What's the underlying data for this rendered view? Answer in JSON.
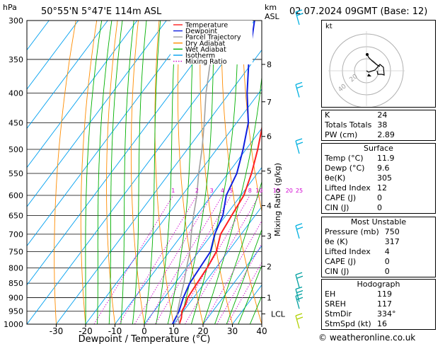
{
  "header": {
    "p_unit": "hPa",
    "location": "50°55'N  5°47'E  114m  ASL",
    "km_unit": "km",
    "asl_unit": "ASL",
    "datetime": "02.07.2024  09GMT  (Base: 12)"
  },
  "legend": [
    {
      "label": "Temperature",
      "color": "#ff2020",
      "style": "solid"
    },
    {
      "label": "Dewpoint",
      "color": "#1020e0",
      "style": "solid"
    },
    {
      "label": "Parcel Trajectory",
      "color": "#a0a0a0",
      "style": "solid"
    },
    {
      "label": "Dry Adiabat",
      "color": "#ff8c00",
      "style": "solid"
    },
    {
      "label": "Wet Adiabat",
      "color": "#00b000",
      "style": "solid"
    },
    {
      "label": "Isotherm",
      "color": "#00a0f0",
      "style": "solid"
    },
    {
      "label": "Mixing Ratio",
      "color": "#d000d0",
      "style": "dotted"
    }
  ],
  "chart_data": {
    "type": "line",
    "xlabel": "Dewpoint / Temperature (°C)",
    "ylabel_right": "Mixing Ratio (g/kg)",
    "xlim": [
      -40,
      40
    ],
    "x_ticks": [
      -30,
      -20,
      -10,
      0,
      10,
      20,
      30,
      40
    ],
    "pressure_levels": [
      300,
      350,
      400,
      450,
      500,
      550,
      600,
      650,
      700,
      750,
      800,
      850,
      900,
      950,
      1000
    ],
    "height_ticks": [
      {
        "label": "8",
        "p": 357
      },
      {
        "label": "7",
        "p": 414
      },
      {
        "label": "6",
        "p": 475
      },
      {
        "label": "5",
        "p": 545
      },
      {
        "label": "4",
        "p": 625
      },
      {
        "label": "3",
        "p": 705
      },
      {
        "label": "2",
        "p": 795
      },
      {
        "label": "1",
        "p": 900
      },
      {
        "label": "LCL",
        "p": 960
      }
    ],
    "mixing_ratio_labels": [
      "1",
      "2",
      "3",
      "4",
      "5",
      "8",
      "10",
      "15",
      "20",
      "25"
    ],
    "series": [
      {
        "name": "Temperature",
        "color": "#ff2020",
        "points": [
          [
            1000,
            11.9
          ],
          [
            975,
            11
          ],
          [
            950,
            9.5
          ],
          [
            925,
            9
          ],
          [
            900,
            8
          ],
          [
            850,
            7.5
          ],
          [
            800,
            7
          ],
          [
            750,
            6
          ],
          [
            700,
            3
          ],
          [
            650,
            2
          ],
          [
            600,
            1
          ],
          [
            550,
            -2
          ],
          [
            500,
            -6
          ],
          [
            450,
            -11
          ],
          [
            400,
            -18
          ],
          [
            350,
            -26
          ],
          [
            300,
            -33
          ]
        ]
      },
      {
        "name": "Dewpoint",
        "color": "#1020e0",
        "points": [
          [
            1000,
            9.6
          ],
          [
            950,
            8.5
          ],
          [
            900,
            6.5
          ],
          [
            850,
            5
          ],
          [
            800,
            4.5
          ],
          [
            750,
            4
          ],
          [
            700,
            1
          ],
          [
            650,
            -1
          ],
          [
            600,
            -5
          ],
          [
            550,
            -7
          ],
          [
            500,
            -11
          ],
          [
            450,
            -16
          ],
          [
            400,
            -24
          ],
          [
            350,
            -32
          ],
          [
            300,
            -40
          ]
        ]
      },
      {
        "name": "Parcel Trajectory",
        "color": "#a0a0a0",
        "points": [
          [
            1000,
            11.9
          ],
          [
            960,
            8.5
          ],
          [
            900,
            5.5
          ],
          [
            850,
            3
          ],
          [
            800,
            0
          ],
          [
            750,
            -3
          ],
          [
            700,
            -7
          ],
          [
            650,
            -11
          ],
          [
            600,
            -15
          ],
          [
            550,
            -20
          ],
          [
            500,
            -25
          ],
          [
            450,
            -31
          ],
          [
            400,
            -38
          ],
          [
            350,
            -45
          ],
          [
            300,
            -53
          ]
        ]
      }
    ]
  },
  "wind_barbs": [
    {
      "p": 300,
      "color": "#00b0e0"
    },
    {
      "p": 400,
      "color": "#00b0e0"
    },
    {
      "p": 500,
      "color": "#00b0e0"
    },
    {
      "p": 700,
      "color": "#00b0e0"
    },
    {
      "p": 850,
      "color": "#00a0a0"
    },
    {
      "p": 900,
      "color": "#00a0a0"
    },
    {
      "p": 925,
      "color": "#00a0a0"
    },
    {
      "p": 1000,
      "color": "#b0d000"
    }
  ],
  "hodograph": {
    "unit_label": "kt",
    "ring_labels": [
      "20",
      "40"
    ]
  },
  "indices": [
    {
      "label": "K",
      "value": "24"
    },
    {
      "label": "Totals Totals",
      "value": "38"
    },
    {
      "label": "PW (cm)",
      "value": "2.89"
    }
  ],
  "surface": {
    "title": "Surface",
    "rows": [
      {
        "label": "Temp (°C)",
        "value": "11.9"
      },
      {
        "label": "Dewp (°C)",
        "value": "9.6"
      },
      {
        "label": "θe(K)",
        "value": "305"
      },
      {
        "label": "Lifted Index",
        "value": "12"
      },
      {
        "label": "CAPE (J)",
        "value": "0"
      },
      {
        "label": "CIN (J)",
        "value": "0"
      }
    ]
  },
  "most_unstable": {
    "title": "Most Unstable",
    "rows": [
      {
        "label": "Pressure (mb)",
        "value": "750"
      },
      {
        "label": "θe (K)",
        "value": "317"
      },
      {
        "label": "Lifted Index",
        "value": "4"
      },
      {
        "label": "CAPE (J)",
        "value": "0"
      },
      {
        "label": "CIN (J)",
        "value": "0"
      }
    ]
  },
  "hodograph_table": {
    "title": "Hodograph",
    "rows": [
      {
        "label": "EH",
        "value": "119"
      },
      {
        "label": "SREH",
        "value": "117"
      },
      {
        "label": "StmDir",
        "value": "334°"
      },
      {
        "label": "StmSpd (kt)",
        "value": "16"
      }
    ]
  },
  "footer": {
    "copyright": "© weatheronline.co.uk"
  }
}
